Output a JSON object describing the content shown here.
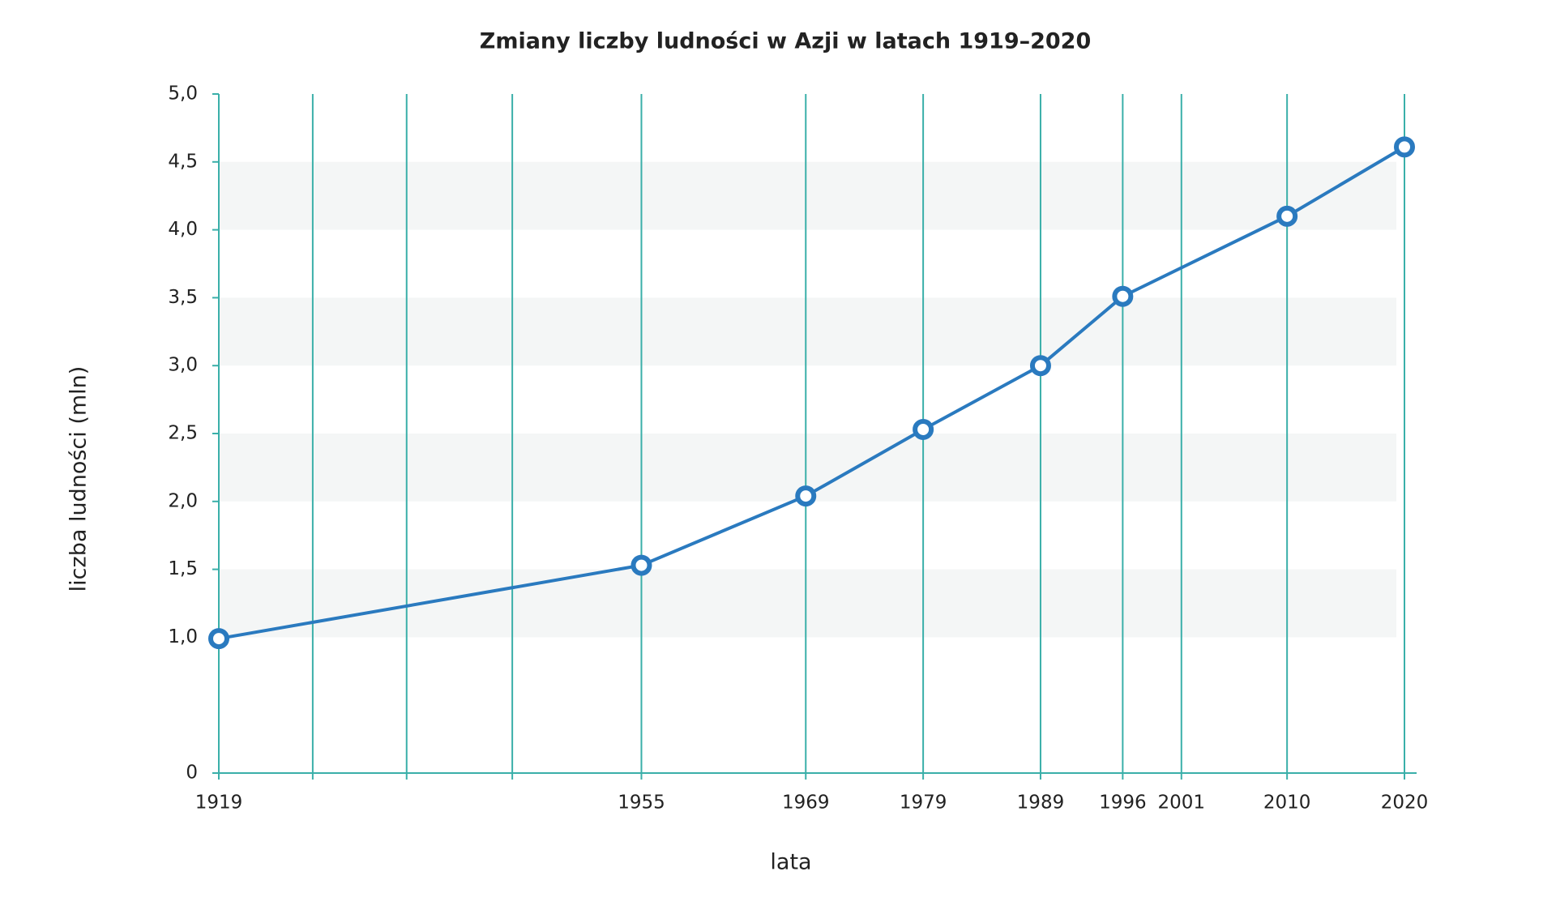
{
  "chart_data": {
    "type": "line",
    "title": "Zmiany liczby ludności w Azji w latach 1919–2020",
    "xlabel": "lata",
    "ylabel": "liczba ludności (mln)",
    "x": [
      1919,
      1955,
      1969,
      1979,
      1989,
      1996,
      2010,
      2020
    ],
    "series": [
      {
        "name": "liczba ludności",
        "color": "#2a7abf",
        "values": [
          0.99,
          1.53,
          2.04,
          2.53,
          3.0,
          3.51,
          4.1,
          4.61
        ]
      }
    ],
    "xlim": [
      1919,
      2020
    ],
    "xticks": [
      1919,
      1955,
      1969,
      1979,
      1989,
      1996,
      2001,
      2010,
      2020
    ],
    "xminorticks": [
      1927,
      1935,
      1944
    ],
    "ylim": [
      0,
      5
    ],
    "yticks": [
      0,
      {
        "value": 1,
        "label": "1,0"
      },
      {
        "value": 1.5,
        "label": "1,5"
      },
      {
        "value": 2,
        "label": "2,0"
      },
      {
        "value": 2.5,
        "label": "2,5"
      },
      {
        "value": 3,
        "label": "3,0"
      },
      {
        "value": 3.5,
        "label": "3,5"
      },
      {
        "value": 4,
        "label": "4,0"
      },
      {
        "value": 4.5,
        "label": "4,5"
      },
      {
        "value": 5,
        "label": "5,0"
      }
    ],
    "grid": true,
    "grid_color": "#3aafa9",
    "bands": true,
    "band_color": "#f4f6f6"
  }
}
